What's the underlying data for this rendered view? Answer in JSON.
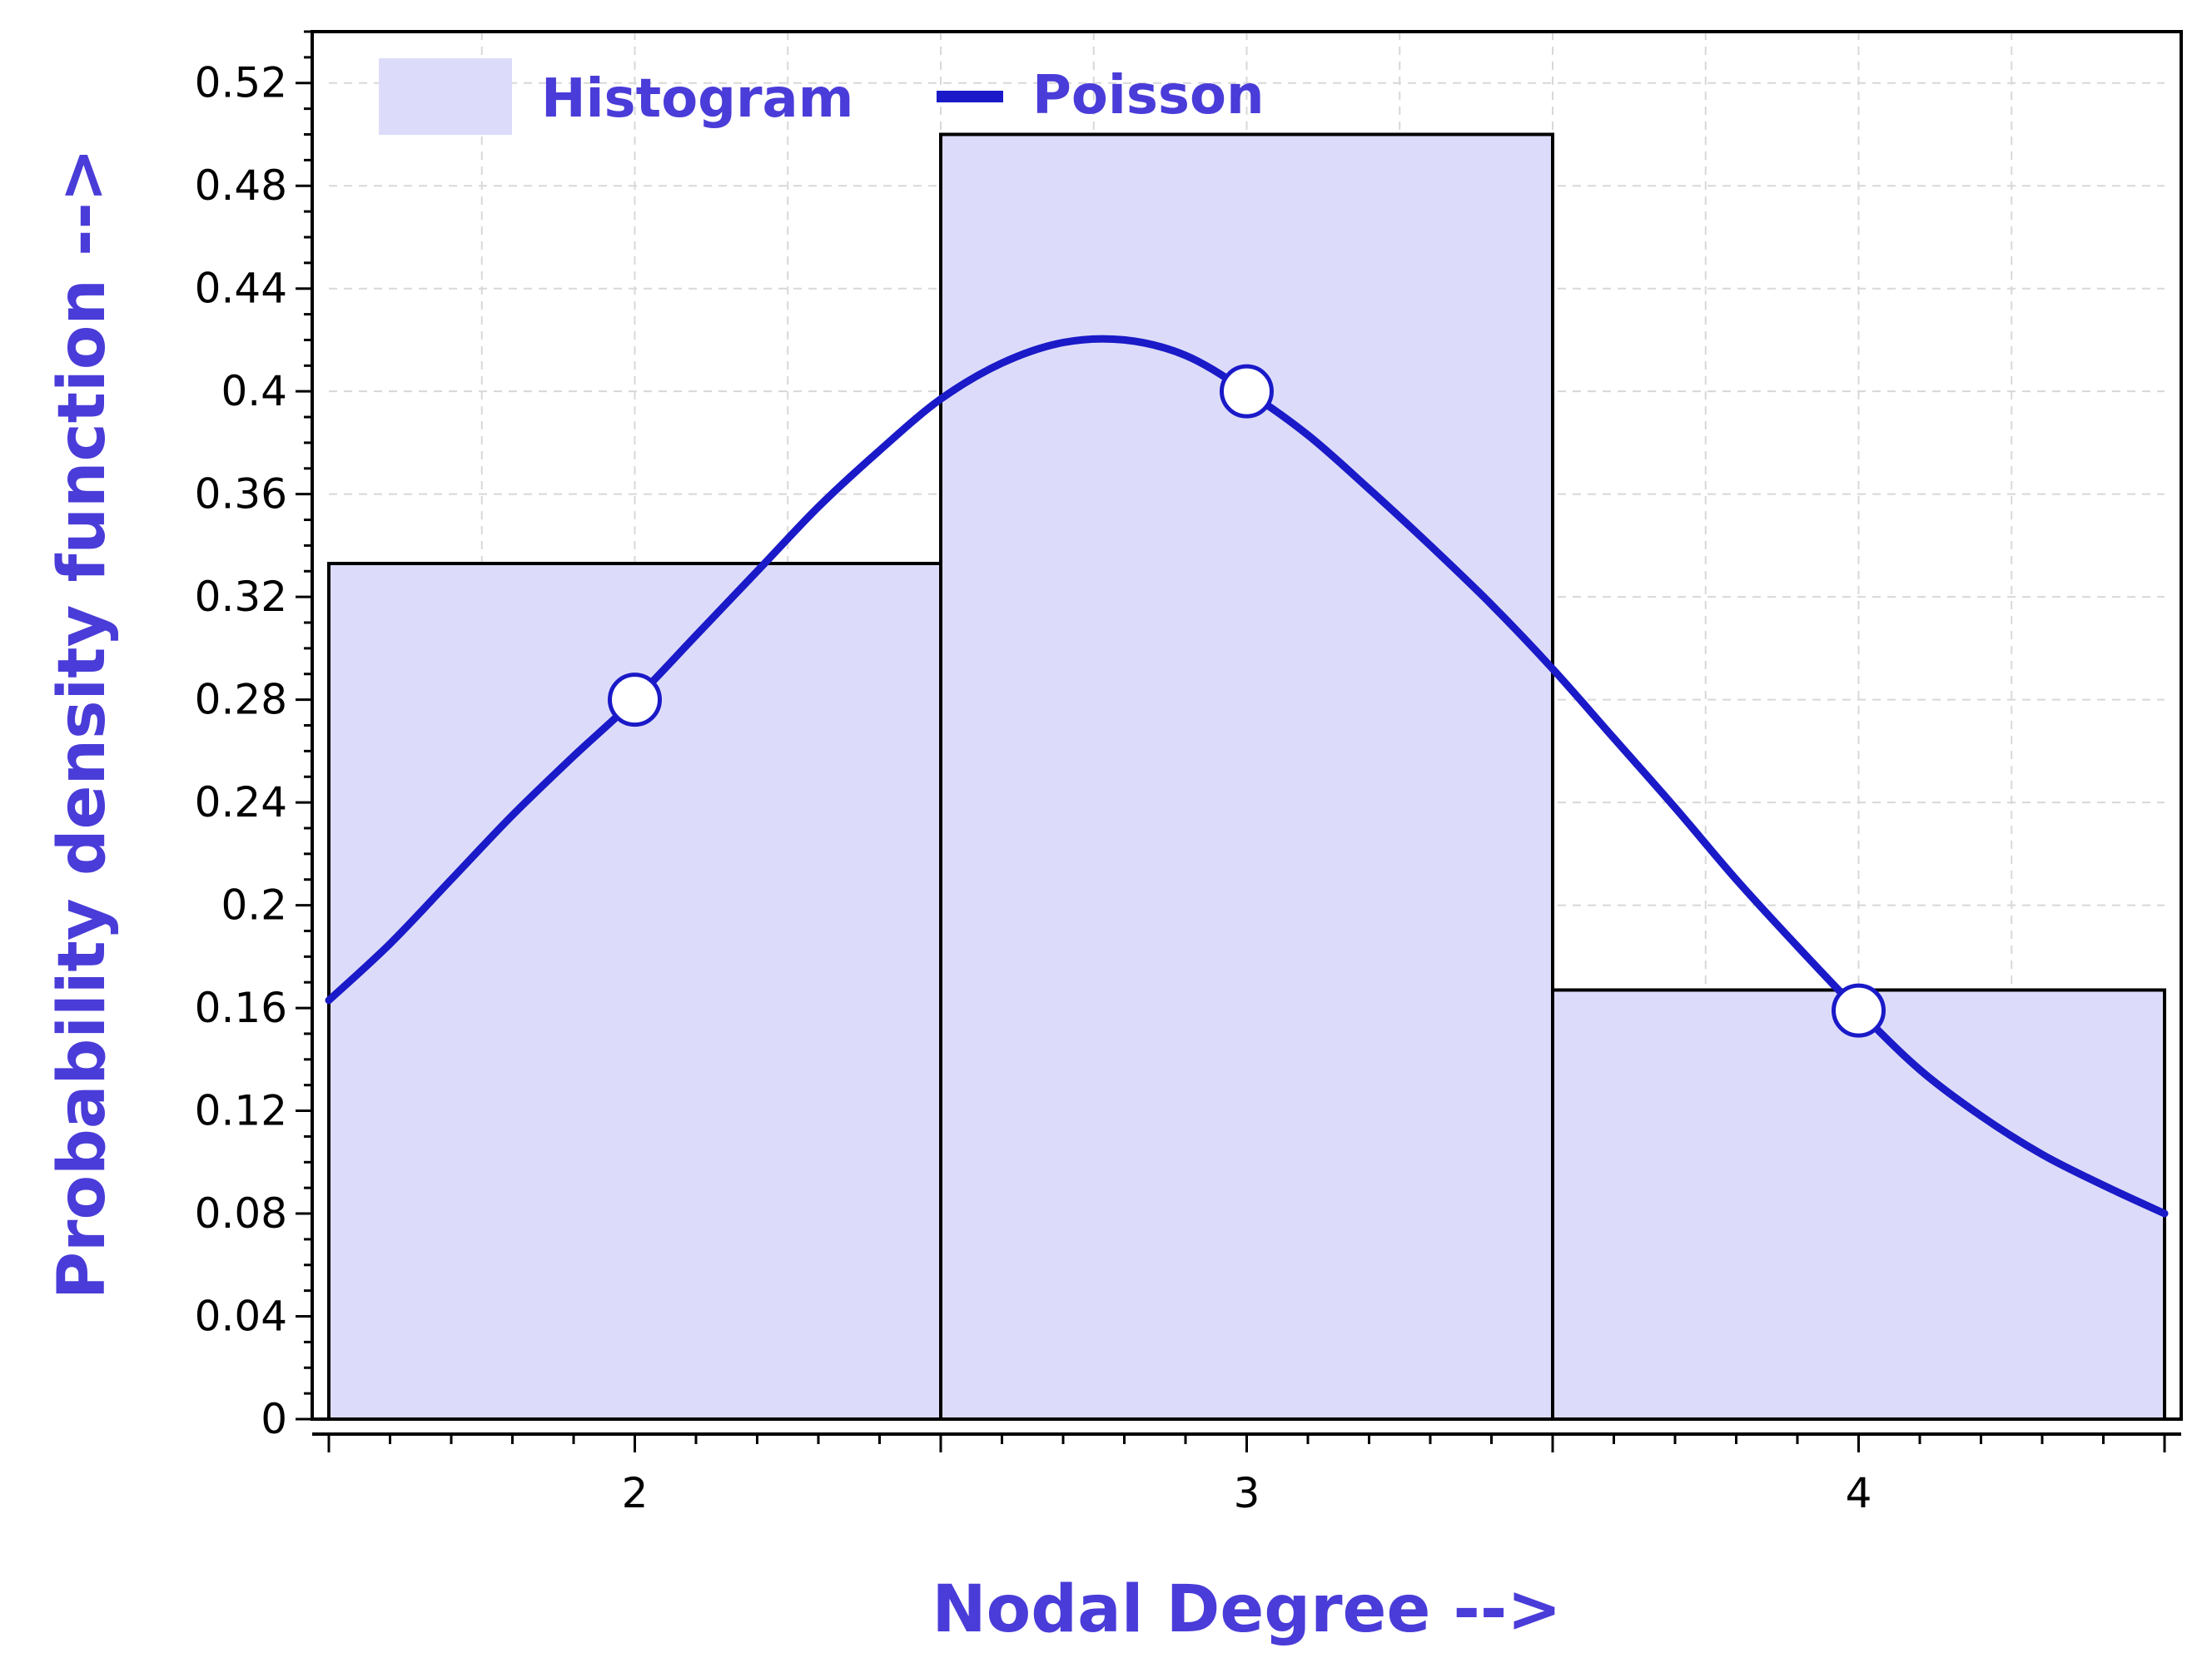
{
  "colors": {
    "bar_fill": "#dcdcfa",
    "bar_stroke": "#000000",
    "curve": "#1a1ac8",
    "marker_fill": "#ffffff",
    "axis_title": "#4a3cd8",
    "legend_text": "#4a3cd8",
    "grid": "#d8d8d8",
    "frame": "#000000"
  },
  "chart_data": {
    "type": "bar",
    "xlabel": "Nodal Degree -->",
    "ylabel": "Probability density function -->",
    "xlim": [
      1.5,
      4.5
    ],
    "ylim": [
      0,
      0.54
    ],
    "x_ticks": [
      2,
      3,
      4
    ],
    "x_tick_labels": [
      "2",
      "3",
      "4"
    ],
    "y_ticks": [
      0,
      0.04,
      0.08,
      0.12,
      0.16,
      0.2,
      0.24,
      0.28,
      0.32,
      0.36,
      0.4,
      0.44,
      0.48,
      0.52
    ],
    "y_tick_labels": [
      "0",
      "0.04",
      "0.08",
      "0.12",
      "0.16",
      "0.2",
      "0.24",
      "0.28",
      "0.32",
      "0.36",
      "0.4",
      "0.44",
      "0.48",
      "0.52"
    ],
    "grid": true,
    "legend_position": "top-left",
    "series": [
      {
        "name": "Histogram",
        "kind": "bar",
        "categories": [
          "2",
          "3",
          "4"
        ],
        "bins": [
          [
            1.5,
            2.5
          ],
          [
            2.5,
            3.5
          ],
          [
            3.5,
            4.5
          ]
        ],
        "values": [
          0.333,
          0.5,
          0.167
        ]
      },
      {
        "name": "Poisson",
        "kind": "line",
        "x": [
          1.5,
          1.6,
          1.7,
          1.8,
          1.9,
          2.0,
          2.1,
          2.2,
          2.3,
          2.4,
          2.5,
          2.6,
          2.7,
          2.8,
          2.9,
          3.0,
          3.1,
          3.2,
          3.3,
          3.4,
          3.5,
          3.6,
          3.7,
          3.8,
          3.9,
          4.0,
          4.1,
          4.2,
          4.3,
          4.4,
          4.5
        ],
        "y": [
          0.163,
          0.185,
          0.21,
          0.235,
          0.258,
          0.28,
          0.305,
          0.33,
          0.355,
          0.377,
          0.397,
          0.411,
          0.419,
          0.42,
          0.414,
          0.4,
          0.383,
          0.362,
          0.34,
          0.317,
          0.292,
          0.265,
          0.238,
          0.21,
          0.184,
          0.159,
          0.136,
          0.118,
          0.103,
          0.091,
          0.08
        ],
        "markers": [
          {
            "x": 2,
            "y": 0.28
          },
          {
            "x": 3,
            "y": 0.4
          },
          {
            "x": 4,
            "y": 0.159
          }
        ]
      }
    ]
  }
}
